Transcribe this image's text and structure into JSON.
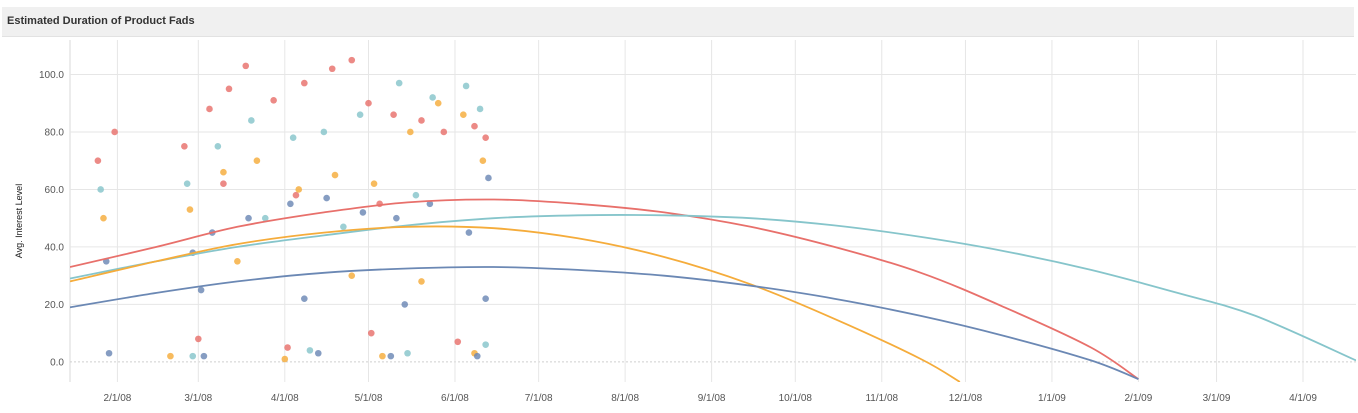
{
  "header": {
    "title": "Estimated Duration of Product Fads"
  },
  "chart_data": {
    "type": "scatter",
    "title": "Estimated Duration of Product Fads",
    "xlabel": "",
    "ylabel": "Avg. Interest Level",
    "xlim": [
      "2008-01-15",
      "2009-04-20"
    ],
    "ylim": [
      -7,
      112
    ],
    "x_ticks": [
      "2/1/08",
      "3/1/08",
      "4/1/08",
      "5/1/08",
      "6/1/08",
      "7/1/08",
      "8/1/08",
      "9/1/08",
      "10/1/08",
      "11/1/08",
      "12/1/08",
      "1/1/09",
      "2/1/09",
      "3/1/09",
      "4/1/09"
    ],
    "y_ticks": [
      "0.0",
      "20.0",
      "40.0",
      "60.0",
      "80.0",
      "100.0"
    ],
    "grid": true,
    "legend": "none",
    "scatter_x_range": [
      "2008-01-25",
      "2008-06-14"
    ],
    "series": [
      {
        "color": "#e8706b",
        "points": [
          [
            "2008-01-25",
            70
          ],
          [
            "2008-01-31",
            80
          ],
          [
            "2008-02-25",
            75
          ],
          [
            "2008-03-05",
            88
          ],
          [
            "2008-03-12",
            95
          ],
          [
            "2008-03-18",
            103
          ],
          [
            "2008-03-28",
            91
          ],
          [
            "2008-04-08",
            97
          ],
          [
            "2008-04-18",
            102
          ],
          [
            "2008-04-25",
            105
          ],
          [
            "2008-05-01",
            90
          ],
          [
            "2008-05-10",
            86
          ],
          [
            "2008-05-20",
            84
          ],
          [
            "2008-05-28",
            80
          ],
          [
            "2008-06-08",
            82
          ],
          [
            "2008-06-12",
            78
          ],
          [
            "2008-03-10",
            62
          ],
          [
            "2008-04-05",
            58
          ],
          [
            "2008-05-05",
            55
          ],
          [
            "2008-03-01",
            8
          ],
          [
            "2008-04-02",
            5
          ],
          [
            "2008-05-02",
            10
          ],
          [
            "2008-06-02",
            7
          ]
        ],
        "trend": [
          [
            "2008-01-15",
            33
          ],
          [
            "2008-02-15",
            40
          ],
          [
            "2008-03-15",
            47
          ],
          [
            "2008-04-15",
            52
          ],
          [
            "2008-05-15",
            55.5
          ],
          [
            "2008-06-15",
            56.5
          ],
          [
            "2008-07-15",
            55
          ],
          [
            "2008-08-15",
            52
          ],
          [
            "2008-09-15",
            47
          ],
          [
            "2008-10-15",
            40
          ],
          [
            "2008-11-15",
            31
          ],
          [
            "2008-12-15",
            19
          ],
          [
            "2009-01-15",
            5
          ],
          [
            "2009-02-01",
            -6
          ]
        ]
      },
      {
        "color": "#86c5cb",
        "points": [
          [
            "2008-01-26",
            60
          ],
          [
            "2008-02-26",
            62
          ],
          [
            "2008-03-08",
            75
          ],
          [
            "2008-03-20",
            84
          ],
          [
            "2008-04-04",
            78
          ],
          [
            "2008-04-15",
            80
          ],
          [
            "2008-04-28",
            86
          ],
          [
            "2008-05-12",
            97
          ],
          [
            "2008-05-24",
            92
          ],
          [
            "2008-06-05",
            96
          ],
          [
            "2008-06-10",
            88
          ],
          [
            "2008-03-25",
            50
          ],
          [
            "2008-04-22",
            47
          ],
          [
            "2008-05-18",
            58
          ],
          [
            "2008-02-28",
            2
          ],
          [
            "2008-04-10",
            4
          ],
          [
            "2008-05-15",
            3
          ],
          [
            "2008-06-12",
            6
          ]
        ],
        "trend": [
          [
            "2008-01-15",
            29
          ],
          [
            "2008-02-15",
            35
          ],
          [
            "2008-03-15",
            40
          ],
          [
            "2008-04-15",
            44
          ],
          [
            "2008-05-15",
            47.5
          ],
          [
            "2008-06-15",
            50
          ],
          [
            "2008-07-15",
            51
          ],
          [
            "2008-08-15",
            51
          ],
          [
            "2008-09-15",
            50
          ],
          [
            "2008-10-15",
            47.5
          ],
          [
            "2008-11-15",
            43.5
          ],
          [
            "2008-12-15",
            38.5
          ],
          [
            "2009-01-15",
            32
          ],
          [
            "2009-02-15",
            24
          ],
          [
            "2009-03-15",
            16
          ],
          [
            "2009-04-20",
            0.5
          ]
        ]
      },
      {
        "color": "#f5ac3b",
        "points": [
          [
            "2008-01-27",
            50
          ],
          [
            "2008-02-27",
            53
          ],
          [
            "2008-03-10",
            66
          ],
          [
            "2008-03-22",
            70
          ],
          [
            "2008-04-06",
            60
          ],
          [
            "2008-04-19",
            65
          ],
          [
            "2008-05-03",
            62
          ],
          [
            "2008-05-16",
            80
          ],
          [
            "2008-05-26",
            90
          ],
          [
            "2008-06-04",
            86
          ],
          [
            "2008-06-11",
            70
          ],
          [
            "2008-03-15",
            35
          ],
          [
            "2008-04-25",
            30
          ],
          [
            "2008-05-20",
            28
          ],
          [
            "2008-02-20",
            2
          ],
          [
            "2008-04-01",
            1
          ],
          [
            "2008-05-06",
            2
          ],
          [
            "2008-06-08",
            3
          ]
        ],
        "trend": [
          [
            "2008-01-15",
            28
          ],
          [
            "2008-02-15",
            35
          ],
          [
            "2008-03-15",
            41
          ],
          [
            "2008-04-15",
            45
          ],
          [
            "2008-05-15",
            47
          ],
          [
            "2008-06-15",
            46.5
          ],
          [
            "2008-07-15",
            43
          ],
          [
            "2008-08-15",
            36.5
          ],
          [
            "2008-09-15",
            27
          ],
          [
            "2008-10-15",
            15
          ],
          [
            "2008-11-15",
            1
          ],
          [
            "2008-11-29",
            -7
          ]
        ]
      },
      {
        "color": "#6b88b4",
        "points": [
          [
            "2008-01-28",
            35
          ],
          [
            "2008-02-28",
            38
          ],
          [
            "2008-03-06",
            45
          ],
          [
            "2008-03-19",
            50
          ],
          [
            "2008-04-03",
            55
          ],
          [
            "2008-04-16",
            57
          ],
          [
            "2008-04-29",
            52
          ],
          [
            "2008-05-11",
            50
          ],
          [
            "2008-05-23",
            55
          ],
          [
            "2008-06-06",
            45
          ],
          [
            "2008-06-13",
            64
          ],
          [
            "2008-03-02",
            25
          ],
          [
            "2008-04-08",
            22
          ],
          [
            "2008-05-14",
            20
          ],
          [
            "2008-06-12",
            22
          ],
          [
            "2008-01-29",
            3
          ],
          [
            "2008-03-03",
            2
          ],
          [
            "2008-04-13",
            3
          ],
          [
            "2008-05-09",
            2
          ],
          [
            "2008-06-09",
            2
          ]
        ],
        "trend": [
          [
            "2008-01-15",
            19
          ],
          [
            "2008-02-15",
            24
          ],
          [
            "2008-03-15",
            28
          ],
          [
            "2008-04-15",
            31
          ],
          [
            "2008-05-15",
            32.5
          ],
          [
            "2008-06-15",
            33
          ],
          [
            "2008-07-15",
            32
          ],
          [
            "2008-08-15",
            30
          ],
          [
            "2008-09-15",
            26.5
          ],
          [
            "2008-10-15",
            22
          ],
          [
            "2008-11-15",
            16
          ],
          [
            "2008-12-15",
            9
          ],
          [
            "2009-01-15",
            0.5
          ],
          [
            "2009-02-01",
            -6
          ]
        ]
      }
    ]
  }
}
